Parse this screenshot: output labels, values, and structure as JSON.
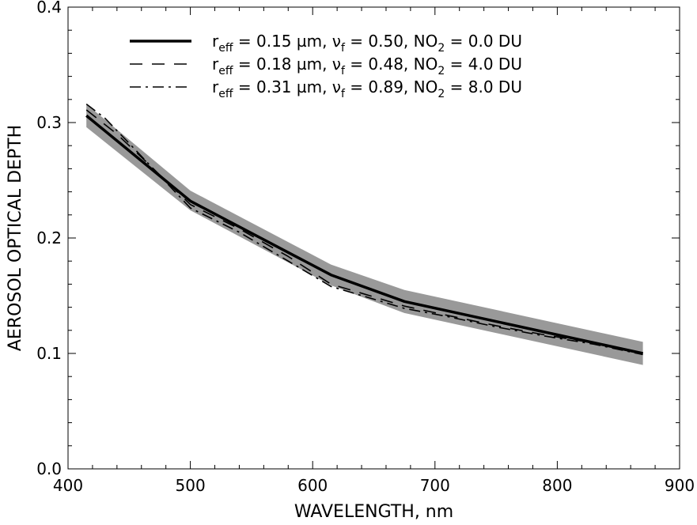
{
  "chart_data": {
    "type": "line",
    "xlabel": "WAVELENGTH, nm",
    "ylabel": "AEROSOL OPTICAL DEPTH",
    "xlim": [
      400,
      900
    ],
    "ylim": [
      0.0,
      0.4
    ],
    "x_ticks": [
      400,
      500,
      600,
      700,
      800,
      900
    ],
    "x_tick_labels": [
      "400",
      "500",
      "600",
      "700",
      "800",
      "900"
    ],
    "y_ticks": [
      0.0,
      0.1,
      0.2,
      0.3,
      0.4
    ],
    "y_tick_labels": [
      "0.0",
      "0.1",
      "0.2",
      "0.3",
      "0.4"
    ],
    "grid": false,
    "legend_position": "top",
    "uncertainty_band": {
      "color": "#999999",
      "x": [
        415,
        500,
        615,
        675,
        870
      ],
      "lower": [
        0.296,
        0.224,
        0.159,
        0.135,
        0.09
      ],
      "upper": [
        0.316,
        0.241,
        0.177,
        0.155,
        0.11
      ]
    },
    "series": [
      {
        "style": "solid",
        "x": [
          415,
          500,
          615,
          675,
          870
        ],
        "values": [
          0.306,
          0.232,
          0.168,
          0.145,
          0.1
        ]
      },
      {
        "style": "dashed",
        "x": [
          415,
          440,
          460,
          500,
          540,
          580,
          615,
          650,
          675,
          710,
          750,
          790,
          830,
          870
        ],
        "values": [
          0.311,
          0.29,
          0.27,
          0.229,
          0.208,
          0.184,
          0.16,
          0.149,
          0.141,
          0.133,
          0.124,
          0.116,
          0.109,
          0.1
        ]
      },
      {
        "style": "dash-dot",
        "x": [
          415,
          430,
          450,
          500,
          540,
          580,
          615,
          650,
          675,
          710,
          750,
          790,
          830,
          870
        ],
        "values": [
          0.316,
          0.304,
          0.282,
          0.226,
          0.205,
          0.18,
          0.158,
          0.147,
          0.139,
          0.132,
          0.123,
          0.115,
          0.108,
          0.099
        ]
      }
    ],
    "legend": [
      {
        "style": "solid",
        "r_eff": "0.15",
        "nu_f": "0.50",
        "no2": "0.0"
      },
      {
        "style": "dashed",
        "r_eff": "0.18",
        "nu_f": "0.48",
        "no2": "4.0"
      },
      {
        "style": "dash-dot",
        "r_eff": "0.31",
        "nu_f": "0.89",
        "no2": "8.0"
      }
    ],
    "legend_text": {
      "r": "r",
      "r_sub": "eff",
      "eq1": " = ",
      "unit": " µm,",
      "nu": "ν",
      "nu_sub": "f",
      "eq2": " = ",
      "sep": ", ",
      "no": "NO",
      "no_sub": "2",
      "eq3": " = ",
      "du": " DU"
    }
  }
}
